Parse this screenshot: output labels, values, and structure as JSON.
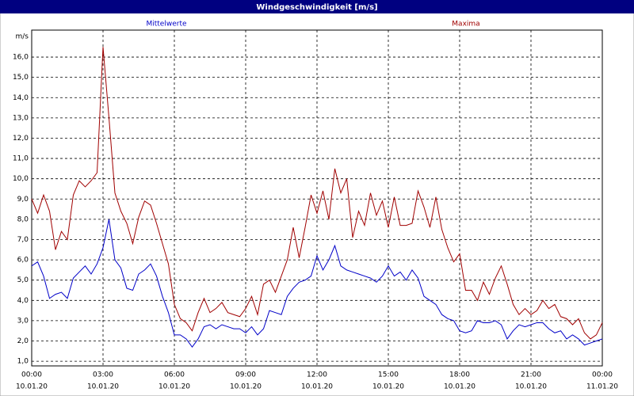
{
  "chart_data": {
    "type": "line",
    "title": "Windgeschwindigkeit [m/s]",
    "y_label": "m/s",
    "x": [
      0,
      0.25,
      0.5,
      0.75,
      1,
      1.25,
      1.5,
      1.75,
      2,
      2.25,
      2.5,
      2.75,
      3,
      3.25,
      3.5,
      3.75,
      4,
      4.25,
      4.5,
      4.75,
      5,
      5.25,
      5.5,
      5.75,
      6,
      6.25,
      6.5,
      6.75,
      7,
      7.25,
      7.5,
      7.75,
      8,
      8.25,
      8.5,
      8.75,
      9,
      9.25,
      9.5,
      9.75,
      10,
      10.25,
      10.5,
      10.75,
      11,
      11.25,
      11.5,
      11.75,
      12,
      12.25,
      12.5,
      12.75,
      13,
      13.25,
      13.5,
      13.75,
      14,
      14.25,
      14.5,
      14.75,
      15,
      15.25,
      15.5,
      15.75,
      16,
      16.25,
      16.5,
      16.75,
      17,
      17.25,
      17.5,
      17.75,
      18,
      18.25,
      18.5,
      18.75,
      19,
      19.25,
      19.5,
      19.75,
      20,
      20.25,
      20.5,
      20.75,
      21,
      21.25,
      21.5,
      21.75,
      22,
      22.25,
      22.5,
      22.75,
      23,
      23.25,
      23.5,
      23.75,
      24
    ],
    "series": [
      {
        "name": "Mittelwerte",
        "color": "#0000c8",
        "values": [
          5.7,
          5.9,
          5.2,
          4.1,
          4.3,
          4.4,
          4.1,
          5.1,
          5.4,
          5.7,
          5.3,
          5.8,
          6.6,
          8.0,
          6.0,
          5.6,
          4.6,
          4.5,
          5.3,
          5.5,
          5.8,
          5.2,
          4.2,
          3.4,
          2.3,
          2.3,
          2.1,
          1.7,
          2.1,
          2.7,
          2.8,
          2.6,
          2.8,
          2.7,
          2.6,
          2.6,
          2.4,
          2.7,
          2.3,
          2.6,
          3.5,
          3.4,
          3.3,
          4.2,
          4.6,
          4.9,
          5.0,
          5.2,
          6.2,
          5.5,
          6.0,
          6.7,
          5.7,
          5.5,
          5.4,
          5.3,
          5.2,
          5.1,
          4.9,
          5.2,
          5.7,
          5.2,
          5.4,
          5.0,
          5.5,
          5.1,
          4.2,
          4.0,
          3.8,
          3.3,
          3.1,
          3.0,
          2.5,
          2.4,
          2.5,
          3.0,
          2.9,
          2.9,
          3.0,
          2.8,
          2.1,
          2.5,
          2.8,
          2.7,
          2.8,
          2.9,
          2.9,
          2.6,
          2.4,
          2.5,
          2.1,
          2.3,
          2.1,
          1.8,
          1.9,
          2.0,
          2.1
        ]
      },
      {
        "name": "Maxima",
        "color": "#a00000",
        "values": [
          9.0,
          8.3,
          9.2,
          8.4,
          6.5,
          7.4,
          7.0,
          9.2,
          9.9,
          9.6,
          9.9,
          10.3,
          16.5,
          13.0,
          9.3,
          8.4,
          7.8,
          6.8,
          8.1,
          8.9,
          8.7,
          7.8,
          6.8,
          5.8,
          3.8,
          3.1,
          2.9,
          2.5,
          3.4,
          4.1,
          3.4,
          3.6,
          3.9,
          3.4,
          3.3,
          3.2,
          3.6,
          4.2,
          3.3,
          4.8,
          5.0,
          4.4,
          5.2,
          6.0,
          7.6,
          6.1,
          7.6,
          9.2,
          8.3,
          9.4,
          8.0,
          10.5,
          9.3,
          10.0,
          7.1,
          8.4,
          7.7,
          9.3,
          8.2,
          8.9,
          7.6,
          9.1,
          7.7,
          7.7,
          7.8,
          9.4,
          8.6,
          7.6,
          9.1,
          7.5,
          6.6,
          5.9,
          6.3,
          4.5,
          4.5,
          4.0,
          4.9,
          4.3,
          5.1,
          5.7,
          4.8,
          3.8,
          3.3,
          3.6,
          3.3,
          3.5,
          4.0,
          3.6,
          3.8,
          3.2,
          3.1,
          2.8,
          3.1,
          2.4,
          2.1,
          2.3,
          2.9
        ]
      }
    ],
    "xlim": [
      0,
      24
    ],
    "xticks": [
      {
        "value": 0,
        "label": "00:00"
      },
      {
        "value": 3,
        "label": "03:00"
      },
      {
        "value": 6,
        "label": "06:00"
      },
      {
        "value": 9,
        "label": "09:00"
      },
      {
        "value": 12,
        "label": "12:00"
      },
      {
        "value": 15,
        "label": "15:00"
      },
      {
        "value": 18,
        "label": "18:00"
      },
      {
        "value": 21,
        "label": "21:00"
      },
      {
        "value": 24,
        "label": "00:00"
      }
    ],
    "xtick_dates": [
      "10.01.20",
      "10.01.20",
      "10.01.20",
      "10.01.20",
      "10.01.20",
      "10.01.20",
      "10.01.20",
      "10.01.20",
      "11.01.20"
    ],
    "ylim": [
      0.77,
      17.33
    ],
    "yticks": [
      {
        "value": 1,
        "label": "1,0"
      },
      {
        "value": 2,
        "label": "2,0"
      },
      {
        "value": 3,
        "label": "3,0"
      },
      {
        "value": 4,
        "label": "4,0"
      },
      {
        "value": 5,
        "label": "5,0"
      },
      {
        "value": 6,
        "label": "6,0"
      },
      {
        "value": 7,
        "label": "7,0"
      },
      {
        "value": 8,
        "label": "8,0"
      },
      {
        "value": 9,
        "label": "9,0"
      },
      {
        "value": 10,
        "label": "10,0"
      },
      {
        "value": 11,
        "label": "11,0"
      },
      {
        "value": 12,
        "label": "12,0"
      },
      {
        "value": 13,
        "label": "13,0"
      },
      {
        "value": 14,
        "label": "14,0"
      },
      {
        "value": 15,
        "label": "15,0"
      },
      {
        "value": 16,
        "label": "16,0"
      }
    ],
    "grid": true
  }
}
